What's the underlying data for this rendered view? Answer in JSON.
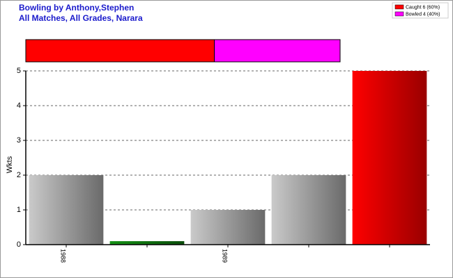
{
  "chart_data": [
    {
      "type": "stacked-bar",
      "title": "Bowling by Anthony,Stephen",
      "subtitle": "All Matches, All Grades, Narara",
      "series": [
        {
          "name": "Caught 6 (60%)",
          "color": "#ff0000",
          "values": [
            6
          ]
        },
        {
          "name": "Bowled 4 (40%)",
          "color": "#ff00ff",
          "values": [
            4
          ]
        }
      ]
    },
    {
      "type": "bar",
      "y_label": "Wkts",
      "categories": [
        "1988",
        null,
        "1989",
        null,
        null
      ],
      "values": [
        2,
        0.1,
        1,
        2,
        5
      ],
      "colors": [
        "#b0b0b0",
        "#138013",
        "#b0b0b0",
        "#b0b0b0",
        "#ff0000"
      ],
      "ylim": [
        0,
        5
      ],
      "yticks": [
        0,
        1,
        2,
        3,
        4,
        5
      ],
      "grid": true
    }
  ]
}
